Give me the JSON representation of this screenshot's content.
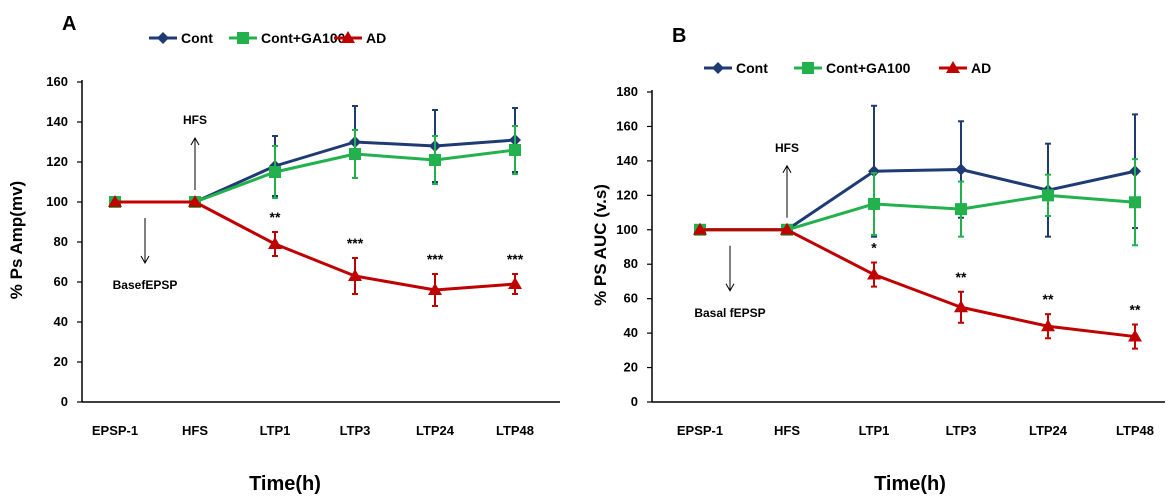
{
  "colors": {
    "cont": "#1f3b73",
    "ga": "#22b14c",
    "ad": "#c00000"
  },
  "chart_data": [
    {
      "type": "line",
      "panel_label": "A",
      "categories": [
        "EPSP-1",
        "HFS",
        "LTP1",
        "LTP3",
        "LTP24",
        "LTP48"
      ],
      "xlabel": "Time(h)",
      "ylabel": "% Ps Amp(mv)",
      "ylim": [
        0,
        160
      ],
      "yticks": [
        0,
        20,
        40,
        60,
        80,
        100,
        120,
        140,
        160
      ],
      "legend_position": "top",
      "grid": false,
      "series": [
        {
          "name": "Cont",
          "color": "#1f3b73",
          "marker": "diamond",
          "values": [
            100,
            100,
            118,
            130,
            128,
            131
          ],
          "errors": [
            0,
            0,
            15,
            18,
            18,
            16
          ]
        },
        {
          "name": "Cont+GA100",
          "color": "#22b14c",
          "marker": "square",
          "values": [
            100,
            100,
            115,
            124,
            121,
            126
          ],
          "errors": [
            0,
            0,
            13,
            12,
            12,
            12
          ]
        },
        {
          "name": "AD",
          "color": "#c00000",
          "marker": "triangle",
          "values": [
            100,
            100,
            79,
            63,
            56,
            59
          ],
          "errors": [
            0,
            0,
            6,
            9,
            8,
            5
          ]
        }
      ],
      "significance": [
        "",
        "",
        "**",
        "***",
        "***",
        "***"
      ],
      "annotations": [
        {
          "text": "HFS",
          "category": "HFS",
          "arrow": "up"
        },
        {
          "text": "BasefEPSP",
          "category": "EPSP-1",
          "arrow": "down"
        }
      ]
    },
    {
      "type": "line",
      "panel_label": "B",
      "categories": [
        "EPSP-1",
        "HFS",
        "LTP1",
        "LTP3",
        "LTP24",
        "LTP48"
      ],
      "xlabel": "Time(h)",
      "ylabel": "% PS AUC (v.s)",
      "ylim": [
        0,
        180
      ],
      "yticks": [
        0,
        20,
        40,
        60,
        80,
        100,
        120,
        140,
        160,
        180
      ],
      "legend_position": "top",
      "grid": false,
      "series": [
        {
          "name": "Cont",
          "color": "#1f3b73",
          "marker": "diamond",
          "values": [
            100,
            100,
            134,
            135,
            123,
            134
          ],
          "errors": [
            0,
            0,
            38,
            28,
            27,
            33
          ]
        },
        {
          "name": "Cont+GA100",
          "color": "#22b14c",
          "marker": "square",
          "values": [
            100,
            100,
            115,
            112,
            120,
            116
          ],
          "errors": [
            0,
            0,
            18,
            16,
            12,
            25
          ]
        },
        {
          "name": "AD",
          "color": "#c00000",
          "marker": "triangle",
          "values": [
            100,
            100,
            74,
            55,
            44,
            38
          ],
          "errors": [
            0,
            0,
            7,
            9,
            7,
            7
          ]
        }
      ],
      "significance": [
        "",
        "",
        "*",
        "**",
        "**",
        "**"
      ],
      "annotations": [
        {
          "text": "HFS",
          "category": "HFS",
          "arrow": "up"
        },
        {
          "text": "Basal fEPSP",
          "category": "EPSP-1",
          "arrow": "down"
        }
      ]
    }
  ]
}
